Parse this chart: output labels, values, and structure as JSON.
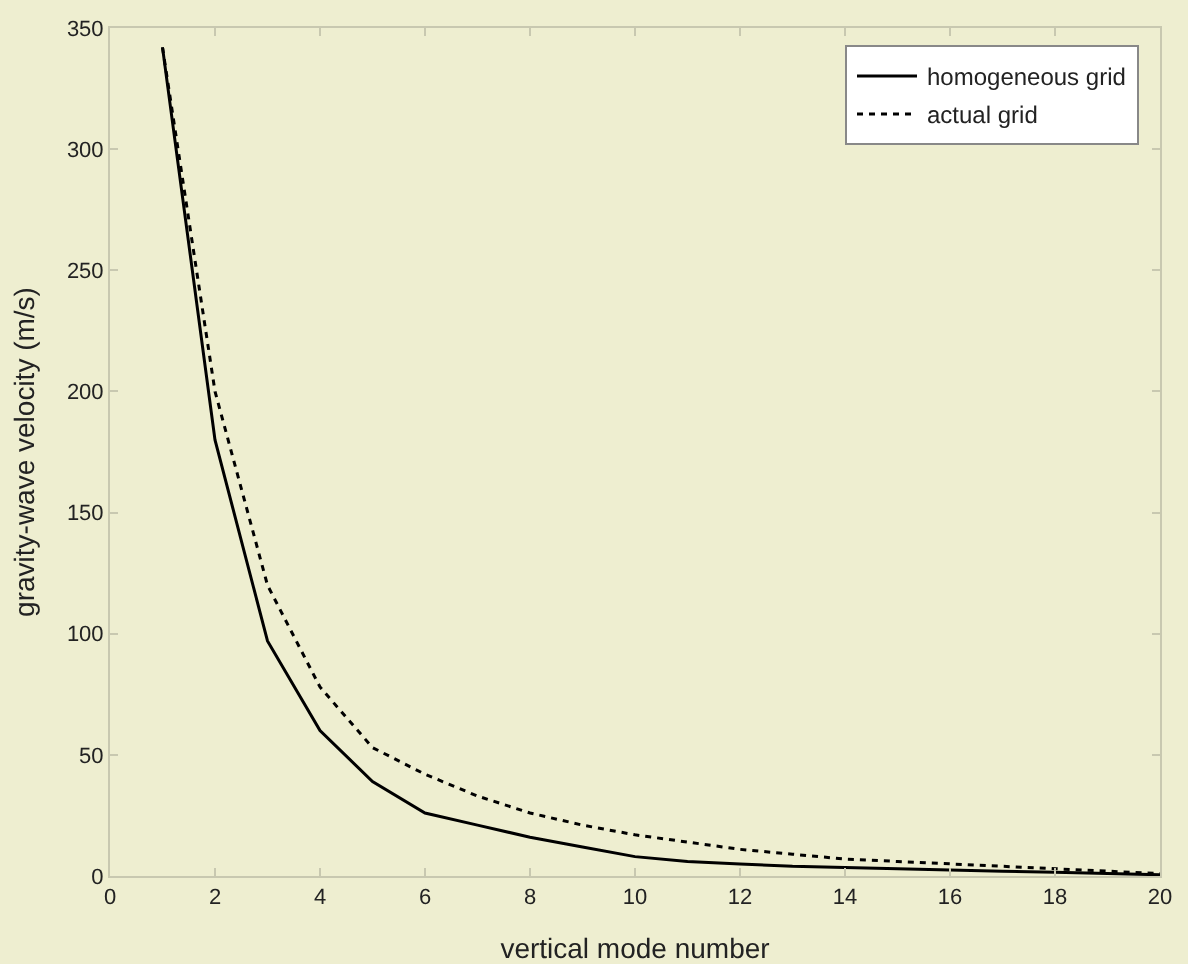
{
  "chart_data": {
    "type": "line",
    "xlabel": "vertical mode number",
    "ylabel": "gravity-wave velocity (m/s)",
    "x": [
      1,
      2,
      3,
      4,
      5,
      6,
      7,
      8,
      9,
      10,
      11,
      12,
      13,
      14,
      15,
      16,
      17,
      18,
      19,
      20
    ],
    "series": [
      {
        "name": "homogeneous grid",
        "color": "#000000",
        "line_style": "solid",
        "values": [
          342,
          180,
          97,
          60,
          39,
          26,
          21,
          16,
          12,
          8,
          6,
          5,
          4,
          3.5,
          3,
          2.5,
          2,
          1.5,
          1,
          0.5
        ]
      },
      {
        "name": "actual grid",
        "color": "#000000",
        "line_style": "dotted",
        "values": [
          342,
          200,
          120,
          78,
          53,
          42,
          33,
          26,
          21,
          17,
          14,
          11,
          9,
          7,
          6,
          5,
          4,
          3,
          2,
          1
        ]
      }
    ],
    "xlim": [
      0,
      20
    ],
    "xticks": [
      0,
      2,
      4,
      6,
      8,
      10,
      12,
      14,
      16,
      18,
      20
    ],
    "ylim": [
      0,
      350
    ],
    "yticks": [
      0,
      50,
      100,
      150,
      200,
      250,
      300,
      350
    ],
    "grid": false,
    "legend": "top right",
    "marker": "none"
  }
}
